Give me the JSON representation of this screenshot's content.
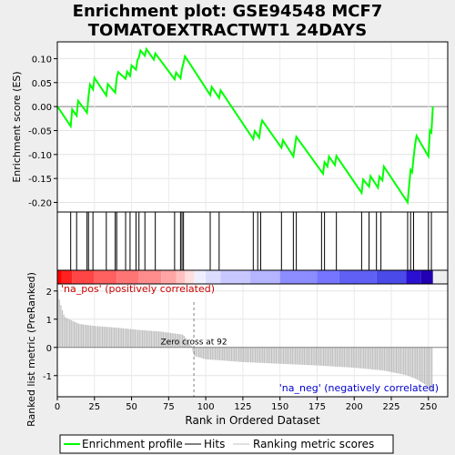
{
  "title_line1": "Enrichment plot: GSE94548 MCF7",
  "title_line2": "TOMATOEXTRACTWT1 24DAYS",
  "chart_data": {
    "type": "line",
    "panels": [
      "enrichment_score",
      "hits",
      "ranked_list"
    ],
    "n_genes": 253,
    "xlabel": "Rank in Ordered Dataset",
    "x_ticks": [
      0,
      25,
      50,
      75,
      100,
      125,
      150,
      175,
      200,
      225,
      250
    ],
    "es_ylabel": "Enrichment score (ES)",
    "es_ylim": [
      -0.22,
      0.135
    ],
    "es_ticks": [
      0.1,
      0.05,
      0.0,
      -0.05,
      -0.1,
      -0.15,
      -0.2
    ],
    "es_tick_labels": [
      "0.10",
      "0.05",
      "0.00",
      "-0.05",
      "-0.10",
      "-0.15",
      "-0.20"
    ],
    "es_points": [
      [
        0,
        0
      ],
      [
        1,
        -0.004
      ],
      [
        9,
        -0.041
      ],
      [
        10,
        -0.006
      ],
      [
        13,
        -0.019
      ],
      [
        14,
        0.012
      ],
      [
        20,
        -0.013
      ],
      [
        21,
        0.021
      ],
      [
        22,
        0.046
      ],
      [
        24,
        0.036
      ],
      [
        25,
        0.06
      ],
      [
        33,
        0.023
      ],
      [
        34,
        0.047
      ],
      [
        39,
        0.029
      ],
      [
        40,
        0.06
      ],
      [
        41,
        0.072
      ],
      [
        46,
        0.058
      ],
      [
        47,
        0.073
      ],
      [
        49,
        0.064
      ],
      [
        50,
        0.086
      ],
      [
        53,
        0.077
      ],
      [
        54,
        0.097
      ],
      [
        55,
        0.103
      ],
      [
        56,
        0.117
      ],
      [
        59,
        0.106
      ],
      [
        60,
        0.12
      ],
      [
        65,
        0.098
      ],
      [
        66,
        0.111
      ],
      [
        79,
        0.057
      ],
      [
        80,
        0.071
      ],
      [
        83,
        0.059
      ],
      [
        84,
        0.079
      ],
      [
        85,
        0.091
      ],
      [
        86,
        0.105
      ],
      [
        103,
        0.024
      ],
      [
        104,
        0.041
      ],
      [
        109,
        0.018
      ],
      [
        110,
        0.034
      ],
      [
        132,
        -0.068
      ],
      [
        133,
        -0.051
      ],
      [
        136,
        -0.065
      ],
      [
        137,
        -0.042
      ],
      [
        138,
        -0.029
      ],
      [
        151,
        -0.086
      ],
      [
        152,
        -0.07
      ],
      [
        159,
        -0.104
      ],
      [
        160,
        -0.084
      ],
      [
        161,
        -0.063
      ],
      [
        179,
        -0.14
      ],
      [
        180,
        -0.116
      ],
      [
        182,
        -0.125
      ],
      [
        183,
        -0.104
      ],
      [
        187,
        -0.122
      ],
      [
        188,
        -0.103
      ],
      [
        205,
        -0.18
      ],
      [
        206,
        -0.152
      ],
      [
        210,
        -0.167
      ],
      [
        211,
        -0.145
      ],
      [
        216,
        -0.169
      ],
      [
        217,
        -0.146
      ],
      [
        219,
        -0.154
      ],
      [
        220,
        -0.125
      ],
      [
        236,
        -0.2
      ],
      [
        237,
        -0.165
      ],
      [
        238,
        -0.132
      ],
      [
        239,
        -0.137
      ],
      [
        240,
        -0.107
      ],
      [
        241,
        -0.08
      ],
      [
        242,
        -0.061
      ],
      [
        250,
        -0.104
      ],
      [
        251,
        -0.05
      ],
      [
        252,
        -0.054
      ],
      [
        253,
        0.0
      ]
    ],
    "hits": [
      9,
      13,
      20,
      21,
      24,
      33,
      39,
      40,
      46,
      49,
      53,
      55,
      59,
      66,
      79,
      83,
      84,
      85,
      103,
      109,
      132,
      135,
      137,
      151,
      159,
      161,
      178,
      180,
      188,
      205,
      210,
      215,
      218,
      236,
      238,
      240,
      250,
      252
    ],
    "rank_metric_ylabel": "Ranked list metric (PreRanked)",
    "rank_metric_ylim": [
      -1.75,
      2.25
    ],
    "rank_metric_ticks": [
      2,
      1,
      0,
      -1
    ],
    "rank_metric_tick_labels": [
      "2",
      "1",
      "0",
      "-1"
    ],
    "rank_metric_points": [
      [
        0,
        2.2
      ],
      [
        1,
        1.8
      ],
      [
        3,
        1.4
      ],
      [
        5,
        1.08
      ],
      [
        10,
        0.95
      ],
      [
        15,
        0.83
      ],
      [
        25,
        0.76
      ],
      [
        40,
        0.7
      ],
      [
        55,
        0.62
      ],
      [
        70,
        0.56
      ],
      [
        85,
        0.45
      ],
      [
        91,
        0.02
      ],
      [
        92,
        -0.3
      ],
      [
        100,
        -0.42
      ],
      [
        125,
        -0.52
      ],
      [
        150,
        -0.58
      ],
      [
        175,
        -0.64
      ],
      [
        200,
        -0.72
      ],
      [
        220,
        -0.82
      ],
      [
        235,
        -0.98
      ],
      [
        242,
        -1.12
      ],
      [
        248,
        -1.32
      ],
      [
        253,
        -1.55
      ]
    ],
    "zero_cross_rank": 92,
    "zero_cross_label": "Zero cross at 92",
    "pos_label": "'na_pos' (positively correlated)",
    "neg_label": "'na_neg' (negatively correlated)",
    "legend": [
      "Enrichment profile",
      "Hits",
      "Ranking metric scores"
    ],
    "colors": {
      "enrichment": "#00ff00",
      "hits": "#000000",
      "ranking": "#c0c0c0",
      "pos_text": "#cc0000",
      "neg_text": "#0000cc",
      "grid": "#808080",
      "zero_line": "#808080"
    },
    "bar_segments": [
      {
        "from": 0,
        "to": 3,
        "color": "#ff0000"
      },
      {
        "from": 3,
        "to": 10,
        "color": "#ff2020"
      },
      {
        "from": 10,
        "to": 25,
        "color": "#ff4545"
      },
      {
        "from": 25,
        "to": 40,
        "color": "#ff6060"
      },
      {
        "from": 40,
        "to": 55,
        "color": "#ff7575"
      },
      {
        "from": 55,
        "to": 70,
        "color": "#ff8c8c"
      },
      {
        "from": 70,
        "to": 80,
        "color": "#ffa5a5"
      },
      {
        "from": 80,
        "to": 86,
        "color": "#ffc0c0"
      },
      {
        "from": 86,
        "to": 92,
        "color": "#ffdede"
      },
      {
        "from": 92,
        "to": 100,
        "color": "#eeeeff"
      },
      {
        "from": 100,
        "to": 110,
        "color": "#dcdcff"
      },
      {
        "from": 110,
        "to": 130,
        "color": "#c8c8ff"
      },
      {
        "from": 130,
        "to": 150,
        "color": "#b4b4ff"
      },
      {
        "from": 150,
        "to": 175,
        "color": "#8c8cff"
      },
      {
        "from": 175,
        "to": 190,
        "color": "#7575ff"
      },
      {
        "from": 190,
        "to": 215,
        "color": "#6060f5"
      },
      {
        "from": 215,
        "to": 235,
        "color": "#4a4ae8"
      },
      {
        "from": 235,
        "to": 245,
        "color": "#2a10d0"
      },
      {
        "from": 245,
        "to": 253,
        "color": "#2000b0"
      }
    ]
  }
}
